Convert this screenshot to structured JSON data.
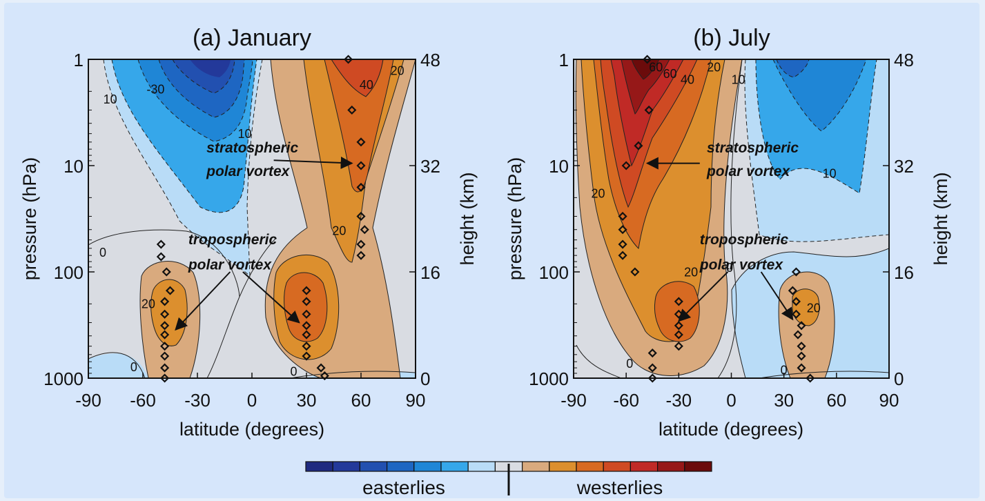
{
  "colors": {
    "background": "#d6e6fb",
    "plot_bg": "#d9dce2",
    "scale": [
      "#1f2a80",
      "#23399a",
      "#2250b0",
      "#1e66c2",
      "#1f86d6",
      "#36a7ea",
      "#b9dcf7",
      "#d9dce2",
      "#d9aa7e",
      "#dc8f2e",
      "#d76a22",
      "#cf4a23",
      "#c02a26",
      "#961818",
      "#6b0b0b"
    ],
    "level_values": [
      -70,
      -60,
      -50,
      -40,
      -30,
      -20,
      -10,
      0,
      10,
      20,
      30,
      40,
      50,
      60,
      70
    ]
  },
  "colorbar": {
    "easterlies": "easterlies",
    "westerlies": "westerlies"
  },
  "chart_data": [
    {
      "type": "heatmap",
      "title": "(a) January",
      "xlabel": "latitude (degrees)",
      "ylabel": "pressure (hPa)",
      "y2label": "height (km)",
      "xlim": [
        -90,
        90
      ],
      "ylim_pressure": [
        1000,
        1
      ],
      "y_scale": "log",
      "x_ticks": [
        "-90",
        "-60",
        "-30",
        "0",
        "30",
        "60",
        "90"
      ],
      "y_ticks": [
        "1",
        "10",
        "100",
        "1000"
      ],
      "y2_ticks": [
        "48",
        "32",
        "16",
        "0"
      ],
      "contour_labels": [
        {
          "text": "10",
          "lat": -78,
          "p": 2.6
        },
        {
          "text": "-30",
          "lat": -53,
          "p": 2.1
        },
        {
          "text": "10",
          "lat": -4,
          "p": 5.5
        },
        {
          "text": "40",
          "lat": 63,
          "p": 1.9
        },
        {
          "text": "20",
          "lat": 80,
          "p": 1.4
        },
        {
          "text": "20",
          "lat": 48,
          "p": 45
        },
        {
          "text": "0",
          "lat": -82,
          "p": 72
        },
        {
          "text": "20",
          "lat": -57,
          "p": 220
        },
        {
          "text": "0",
          "lat": -65,
          "p": 860
        },
        {
          "text": "0",
          "lat": 23,
          "p": 950
        }
      ],
      "annotations": [
        {
          "text": "stratospheric",
          "lat": -25,
          "p": 7.5
        },
        {
          "text": "polar vortex",
          "lat": -25,
          "p": 12.5
        },
        {
          "text": "tropospheric",
          "lat": -35,
          "p": 55
        },
        {
          "text": "polar vortex",
          "lat": -35,
          "p": 95
        }
      ],
      "arrows": [
        {
          "from_lat": 12,
          "from_p": 8.9,
          "to_lat": 55,
          "to_p": 9.5
        },
        {
          "from_lat": -12,
          "from_p": 100,
          "to_lat": -42,
          "to_p": 350
        },
        {
          "from_lat": -5,
          "from_p": 100,
          "to_lat": 26,
          "to_p": 300
        }
      ],
      "jet_max_diamonds": [
        {
          "lat": 53,
          "p": 1
        },
        {
          "lat": 55,
          "p": 3
        },
        {
          "lat": 60,
          "p": 6
        },
        {
          "lat": 60,
          "p": 10
        },
        {
          "lat": 60,
          "p": 16
        },
        {
          "lat": 60,
          "p": 30
        },
        {
          "lat": 62,
          "p": 40
        },
        {
          "lat": 60,
          "p": 55
        },
        {
          "lat": 60,
          "p": 70
        },
        {
          "lat": -50,
          "p": 55
        },
        {
          "lat": -50,
          "p": 72
        },
        {
          "lat": -47,
          "p": 100
        },
        {
          "lat": -45,
          "p": 150
        },
        {
          "lat": -48,
          "p": 190
        },
        {
          "lat": -48,
          "p": 250
        },
        {
          "lat": -48,
          "p": 320
        },
        {
          "lat": -48,
          "p": 390
        },
        {
          "lat": -48,
          "p": 500
        },
        {
          "lat": -48,
          "p": 620
        },
        {
          "lat": -48,
          "p": 800
        },
        {
          "lat": -48,
          "p": 1000
        },
        {
          "lat": 30,
          "p": 150
        },
        {
          "lat": 30,
          "p": 190
        },
        {
          "lat": 30,
          "p": 250
        },
        {
          "lat": 30,
          "p": 320
        },
        {
          "lat": 30,
          "p": 390
        },
        {
          "lat": 30,
          "p": 500
        },
        {
          "lat": 30,
          "p": 620
        },
        {
          "lat": 38,
          "p": 800
        },
        {
          "lat": 40,
          "p": 950
        }
      ]
    },
    {
      "type": "heatmap",
      "title": "(b) July",
      "xlabel": "latitude (degrees)",
      "ylabel": "pressure (hPa)",
      "y2label": "height (km)",
      "xlim": [
        -90,
        90
      ],
      "ylim_pressure": [
        1000,
        1
      ],
      "y_scale": "log",
      "x_ticks": [
        "-90",
        "-60",
        "-30",
        "0",
        "30",
        "60",
        "90"
      ],
      "y_ticks": [
        "1",
        "10",
        "100",
        "1000"
      ],
      "y2_ticks": [
        "48",
        "32",
        "16",
        "0"
      ],
      "contour_labels": [
        {
          "text": "60",
          "lat": -43,
          "p": 1.3
        },
        {
          "text": "60",
          "lat": -35,
          "p": 1.5
        },
        {
          "text": "40",
          "lat": -25,
          "p": 1.7
        },
        {
          "text": "20",
          "lat": -10,
          "p": 1.3
        },
        {
          "text": "10",
          "lat": 4,
          "p": 1.7
        },
        {
          "text": "20",
          "lat": -76,
          "p": 20
        },
        {
          "text": "10",
          "lat": 56,
          "p": 13
        },
        {
          "text": "0",
          "lat": -58,
          "p": 800
        },
        {
          "text": "20",
          "lat": -23,
          "p": 110
        },
        {
          "text": "0",
          "lat": -1,
          "p": 100
        },
        {
          "text": "20",
          "lat": 47,
          "p": 240
        },
        {
          "text": "0",
          "lat": 30,
          "p": 920
        }
      ],
      "annotations": [
        {
          "text": "stratospheric",
          "lat": -14,
          "p": 7.5
        },
        {
          "text": "polar vortex",
          "lat": -14,
          "p": 12.5
        },
        {
          "text": "tropospheric",
          "lat": -18,
          "p": 55
        },
        {
          "text": "polar vortex",
          "lat": -18,
          "p": 95
        }
      ],
      "arrows": [
        {
          "from_lat": -18,
          "from_p": 9.5,
          "to_lat": -48,
          "to_p": 9.5
        },
        {
          "from_lat": -2,
          "from_p": 100,
          "to_lat": -30,
          "to_p": 290
        },
        {
          "from_lat": 17,
          "from_p": 100,
          "to_lat": 35,
          "to_p": 280
        }
      ],
      "jet_max_diamonds": [
        {
          "lat": -48,
          "p": 1
        },
        {
          "lat": -47,
          "p": 3
        },
        {
          "lat": -53,
          "p": 6.5
        },
        {
          "lat": -60,
          "p": 10
        },
        {
          "lat": -62,
          "p": 30
        },
        {
          "lat": -62,
          "p": 40
        },
        {
          "lat": -62,
          "p": 55
        },
        {
          "lat": -62,
          "p": 70
        },
        {
          "lat": -55,
          "p": 100
        },
        {
          "lat": -30,
          "p": 190
        },
        {
          "lat": -30,
          "p": 250
        },
        {
          "lat": -30,
          "p": 320
        },
        {
          "lat": -30,
          "p": 390
        },
        {
          "lat": -30,
          "p": 500
        },
        {
          "lat": -45,
          "p": 580
        },
        {
          "lat": -45,
          "p": 800
        },
        {
          "lat": -45,
          "p": 1000
        },
        {
          "lat": 37,
          "p": 100
        },
        {
          "lat": 35,
          "p": 150
        },
        {
          "lat": 37,
          "p": 190
        },
        {
          "lat": 37,
          "p": 250
        },
        {
          "lat": 40,
          "p": 320
        },
        {
          "lat": 38,
          "p": 390
        },
        {
          "lat": 40,
          "p": 500
        },
        {
          "lat": 40,
          "p": 620
        },
        {
          "lat": 40,
          "p": 800
        },
        {
          "lat": 45,
          "p": 1000
        }
      ]
    }
  ]
}
